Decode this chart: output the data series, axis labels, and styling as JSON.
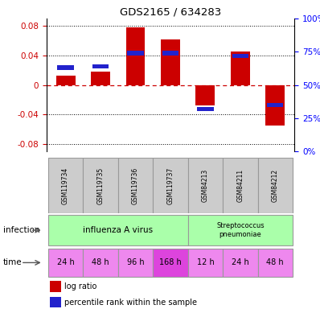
{
  "title": "GDS2165 / 634283",
  "samples": [
    "GSM119734",
    "GSM119735",
    "GSM119736",
    "GSM119737",
    "GSM84213",
    "GSM84211",
    "GSM84212"
  ],
  "log_ratios": [
    0.013,
    0.018,
    0.078,
    0.062,
    -0.028,
    0.045,
    -0.055
  ],
  "percentile_ranks": [
    0.63,
    0.64,
    0.74,
    0.74,
    0.32,
    0.72,
    0.35
  ],
  "ylim": [
    -0.09,
    0.09
  ],
  "yticks": [
    -0.08,
    -0.04,
    0.0,
    0.04,
    0.08
  ],
  "ytick_labels_left": [
    "-0.08",
    "-0.04",
    "0",
    "0.04",
    "0.08"
  ],
  "yticks_right_pct": [
    0,
    25,
    50,
    75,
    100
  ],
  "bar_color_red": "#cc0000",
  "bar_color_blue": "#2222cc",
  "time_labels": [
    "24 h",
    "48 h",
    "96 h",
    "168 h",
    "12 h",
    "24 h",
    "48 h"
  ],
  "time_colors": [
    "#ee88ee",
    "#ee88ee",
    "#ee88ee",
    "#dd44dd",
    "#ee88ee",
    "#ee88ee",
    "#ee88ee"
  ],
  "infection_label1": "influenza A virus",
  "infection_label2": "Streptococcus\npneumoniae",
  "infection_color": "#aaffaa",
  "sample_bg_color": "#cccccc",
  "legend_red_label": "log ratio",
  "legend_blue_label": "percentile rank within the sample",
  "zero_line_color": "#cc0000",
  "bar_width": 0.55
}
